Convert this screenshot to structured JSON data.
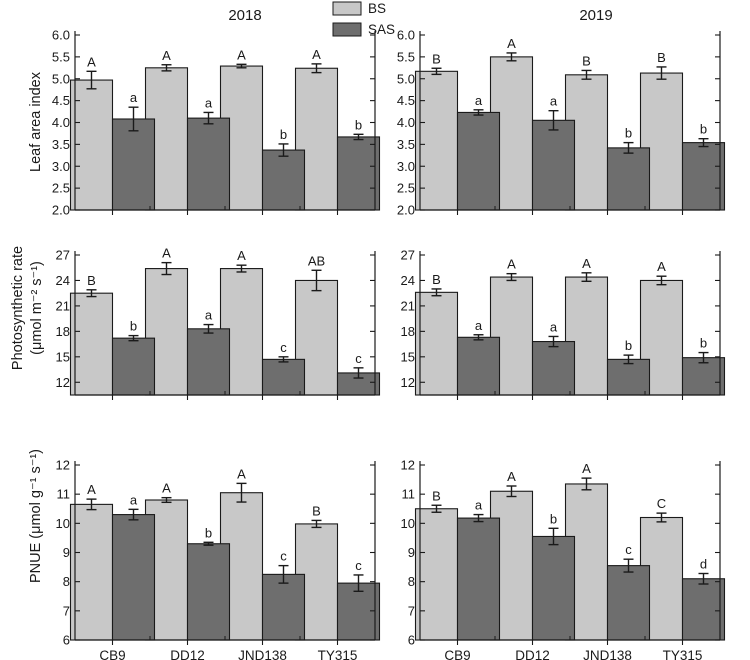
{
  "figure": {
    "years": [
      "2018",
      "2019"
    ],
    "legend": [
      {
        "label": "BS",
        "color": "#c8c8c8"
      },
      {
        "label": "SAS",
        "color": "#6e6e6e"
      }
    ],
    "categories": [
      "CB9",
      "DD12",
      "JND138",
      "TY315"
    ],
    "row_labels": [
      {
        "line1": "Leaf area index",
        "line2": ""
      },
      {
        "line1": "Photosynthetic rate",
        "line2": "(μmol m⁻² s⁻¹)"
      },
      {
        "line1": "PNUE (μmol g⁻¹ s⁻¹)",
        "line2": ""
      }
    ]
  },
  "chart_data": [
    {
      "type": "bar",
      "row": 0,
      "col": 0,
      "title": "2018",
      "ylabel": "Leaf area index",
      "categories": [
        "CB9",
        "DD12",
        "JND138",
        "TY315"
      ],
      "ylim": [
        2.0,
        6.0
      ],
      "yticks": [
        "2.0",
        "2.5",
        "3.0",
        "3.5",
        "4.0",
        "4.5",
        "5.0",
        "5.5",
        "6.0"
      ],
      "series": [
        {
          "name": "BS",
          "values": [
            4.97,
            5.25,
            5.29,
            5.24
          ],
          "errors": [
            0.2,
            0.07,
            0.04,
            0.1
          ],
          "labels": [
            "A",
            "A",
            "A",
            "A"
          ]
        },
        {
          "name": "SAS",
          "values": [
            4.08,
            4.1,
            3.37,
            3.67
          ],
          "errors": [
            0.27,
            0.13,
            0.14,
            0.06
          ],
          "labels": [
            "a",
            "a",
            "b",
            "b"
          ]
        }
      ]
    },
    {
      "type": "bar",
      "row": 0,
      "col": 1,
      "title": "2019",
      "ylabel": "",
      "categories": [
        "CB9",
        "DD12",
        "JND138",
        "TY315"
      ],
      "ylim": [
        2.0,
        6.0
      ],
      "yticks": [
        "2.0",
        "2.5",
        "3.0",
        "3.5",
        "4.0",
        "4.5",
        "5.0",
        "5.5",
        "6.0"
      ],
      "series": [
        {
          "name": "BS",
          "values": [
            5.17,
            5.5,
            5.09,
            5.13
          ],
          "errors": [
            0.07,
            0.09,
            0.1,
            0.14
          ],
          "labels": [
            "B",
            "A",
            "B",
            "B"
          ]
        },
        {
          "name": "SAS",
          "values": [
            4.23,
            4.05,
            3.42,
            3.54
          ],
          "errors": [
            0.06,
            0.22,
            0.12,
            0.09
          ],
          "labels": [
            "a",
            "a",
            "b",
            "b"
          ]
        }
      ]
    },
    {
      "type": "bar",
      "row": 1,
      "col": 0,
      "title": "",
      "ylabel": "Photosynthetic rate (μmol m⁻² s⁻¹)",
      "categories": [
        "CB9",
        "DD12",
        "JND138",
        "TY315"
      ],
      "ylim": [
        10.5,
        27
      ],
      "yticks": [
        "12",
        "15",
        "18",
        "21",
        "24",
        "27"
      ],
      "series": [
        {
          "name": "BS",
          "values": [
            22.5,
            25.4,
            25.4,
            24.0
          ],
          "errors": [
            0.4,
            0.7,
            0.4,
            1.2
          ],
          "labels": [
            "B",
            "A",
            "A",
            "AB"
          ]
        },
        {
          "name": "SAS",
          "values": [
            17.2,
            18.3,
            14.7,
            13.1
          ],
          "errors": [
            0.3,
            0.5,
            0.3,
            0.6
          ],
          "labels": [
            "b",
            "a",
            "c",
            "c"
          ]
        }
      ]
    },
    {
      "type": "bar",
      "row": 1,
      "col": 1,
      "title": "",
      "ylabel": "",
      "categories": [
        "CB9",
        "DD12",
        "JND138",
        "TY315"
      ],
      "ylim": [
        10.5,
        27
      ],
      "yticks": [
        "12",
        "15",
        "18",
        "21",
        "24",
        "27"
      ],
      "series": [
        {
          "name": "BS",
          "values": [
            22.6,
            24.4,
            24.4,
            24.0
          ],
          "errors": [
            0.4,
            0.4,
            0.5,
            0.5
          ],
          "labels": [
            "B",
            "A",
            "A",
            "A"
          ]
        },
        {
          "name": "SAS",
          "values": [
            17.3,
            16.8,
            14.7,
            14.9
          ],
          "errors": [
            0.3,
            0.6,
            0.5,
            0.6
          ],
          "labels": [
            "a",
            "a",
            "b",
            "b"
          ]
        }
      ]
    },
    {
      "type": "bar",
      "row": 2,
      "col": 0,
      "title": "",
      "ylabel": "PNUE (μmol g⁻¹ s⁻¹)",
      "categories": [
        "CB9",
        "DD12",
        "JND138",
        "TY315"
      ],
      "ylim": [
        6,
        12
      ],
      "yticks": [
        "6",
        "7",
        "8",
        "9",
        "10",
        "11",
        "12"
      ],
      "series": [
        {
          "name": "BS",
          "values": [
            10.65,
            10.8,
            11.05,
            9.98
          ],
          "errors": [
            0.18,
            0.08,
            0.32,
            0.12
          ],
          "labels": [
            "A",
            "A",
            "A",
            "B"
          ]
        },
        {
          "name": "SAS",
          "values": [
            10.3,
            9.3,
            8.25,
            7.95
          ],
          "errors": [
            0.18,
            0.05,
            0.3,
            0.28
          ],
          "labels": [
            "a",
            "b",
            "c",
            "c"
          ]
        }
      ]
    },
    {
      "type": "bar",
      "row": 2,
      "col": 1,
      "title": "",
      "ylabel": "",
      "categories": [
        "CB9",
        "DD12",
        "JND138",
        "TY315"
      ],
      "ylim": [
        6,
        12
      ],
      "yticks": [
        "6",
        "7",
        "8",
        "9",
        "10",
        "11",
        "12"
      ],
      "series": [
        {
          "name": "BS",
          "values": [
            10.5,
            11.1,
            11.35,
            10.2
          ],
          "errors": [
            0.12,
            0.18,
            0.2,
            0.15
          ],
          "labels": [
            "B",
            "A",
            "A",
            "C"
          ]
        },
        {
          "name": "SAS",
          "values": [
            10.18,
            9.55,
            8.55,
            8.1
          ],
          "errors": [
            0.12,
            0.28,
            0.22,
            0.18
          ],
          "labels": [
            "a",
            "b",
            "c",
            "d"
          ]
        }
      ]
    }
  ]
}
